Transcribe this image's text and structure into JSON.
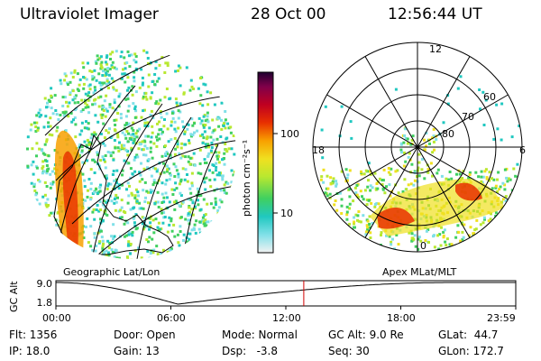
{
  "header": {
    "instrument": "Ultraviolet Imager",
    "date": "28 Oct 00",
    "time": "12:56:44 UT"
  },
  "colorbar": {
    "unit_label": "photon cm⁻²s⁻¹",
    "tick_100": "100",
    "tick_10": "10",
    "colors": [
      "#f2f2f2",
      "#80e0e8",
      "#20c8c0",
      "#40d060",
      "#b8e830",
      "#f0e020",
      "#f8a000",
      "#e83000",
      "#c00020",
      "#80004a",
      "#200030"
    ]
  },
  "left_panel": {
    "caption": "Geographic Lat/Lon"
  },
  "right_panel": {
    "caption": "Apex MLat/MLT",
    "mlt_labels": {
      "top": "12",
      "left": "18",
      "right": "6",
      "bottom": "0"
    },
    "lat_labels": {
      "l60": "60",
      "l70": "70",
      "l80": "80"
    }
  },
  "timeline": {
    "y_label": "GC Alt",
    "y_max": "9.0",
    "y_min": "1.8",
    "x_ticks": [
      "00:00",
      "06:00",
      "12:00",
      "18:00",
      "23:59"
    ],
    "current_time_fraction": 0.539
  },
  "status": {
    "flt": "Flt: 1356",
    "ip": "IP: 18.0",
    "door": "Door: Open",
    "gain": "Gain: 13",
    "mode": "Mode: Normal",
    "dsp": "Dsp:   -3.8",
    "gcalt": "GC Alt: 9.0 Re",
    "seq": "Seq: 30",
    "glat": "GLat:  44.7",
    "glon": "GLon: 172.7"
  }
}
